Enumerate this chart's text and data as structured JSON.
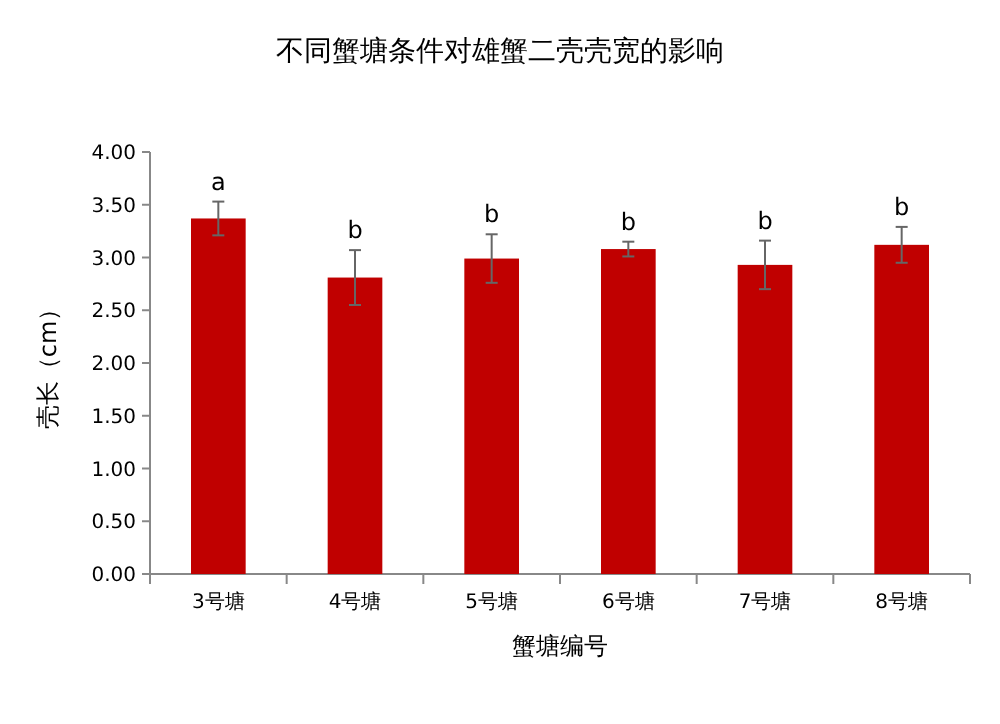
{
  "chart_data": {
    "type": "bar",
    "title": "不同蟹塘条件对雄蟹二壳壳宽的影响",
    "xlabel": "蟹塘编号",
    "ylabel": "壳长（cm）",
    "categories": [
      "3号塘",
      "4号塘",
      "5号塘",
      "6号塘",
      "7号塘",
      "8号塘"
    ],
    "values": [
      3.37,
      2.81,
      2.99,
      3.08,
      2.93,
      3.12
    ],
    "errors": [
      0.16,
      0.26,
      0.23,
      0.07,
      0.23,
      0.17
    ],
    "color": "#c00000",
    "ylim": [
      0,
      4
    ],
    "yticks": [
      {
        "value": 0,
        "label": "0.00"
      },
      {
        "value": 0.5,
        "label": "0.50"
      },
      {
        "value": 1,
        "label": "1.00"
      },
      {
        "value": 1.5,
        "label": "1.50"
      },
      {
        "value": 2,
        "label": "2.00"
      },
      {
        "value": 2.5,
        "label": "2.50"
      },
      {
        "value": 3,
        "label": "3.00"
      },
      {
        "value": 3.5,
        "label": "3.50"
      },
      {
        "value": 4,
        "label": "4.00"
      }
    ],
    "grid": false,
    "annotations": [
      {
        "text": "a",
        "x": "3号塘",
        "y": 3.53
      },
      {
        "text": "b",
        "x": "4号塘",
        "y": 3.07
      },
      {
        "text": "b",
        "x": "5号塘",
        "y": 3.22
      },
      {
        "text": "b",
        "x": "6号塘",
        "y": 3.15
      },
      {
        "text": "b",
        "x": "7号塘",
        "y": 3.16
      },
      {
        "text": "b",
        "x": "8号塘",
        "y": 3.29
      }
    ]
  }
}
